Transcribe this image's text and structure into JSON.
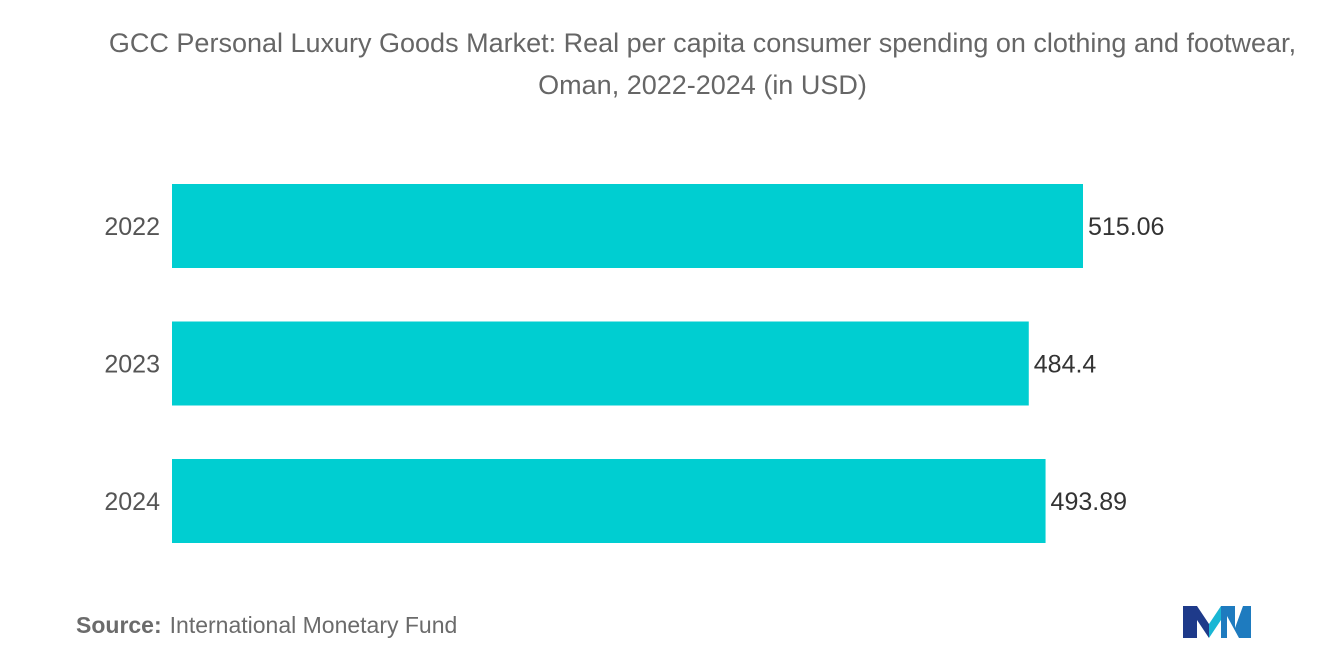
{
  "title": "GCC Personal Luxury Goods Market: Real per capita consumer spending on clothing and footwear, Oman, 2022-2024 (in USD)",
  "source": {
    "label": "Source:",
    "text": "International Monetary Fund"
  },
  "colors": {
    "bar": "#00CED1",
    "text": "#555555",
    "title": "#666666"
  },
  "logo_icon": "mordor-intelligence-logo-icon",
  "chart_data": {
    "type": "bar",
    "orientation": "horizontal",
    "title": "GCC Personal Luxury Goods Market: Real per capita consumer spending on clothing and footwear, Oman, 2022-2024 (in USD)",
    "categories": [
      "2022",
      "2023",
      "2024"
    ],
    "values": [
      515.06,
      484.4,
      493.89
    ],
    "value_labels": [
      "515.06",
      "484.4",
      "493.89"
    ],
    "xlabel": "",
    "ylabel": "",
    "xlim": [
      0,
      515.06
    ],
    "grid": false,
    "legend": "none"
  }
}
